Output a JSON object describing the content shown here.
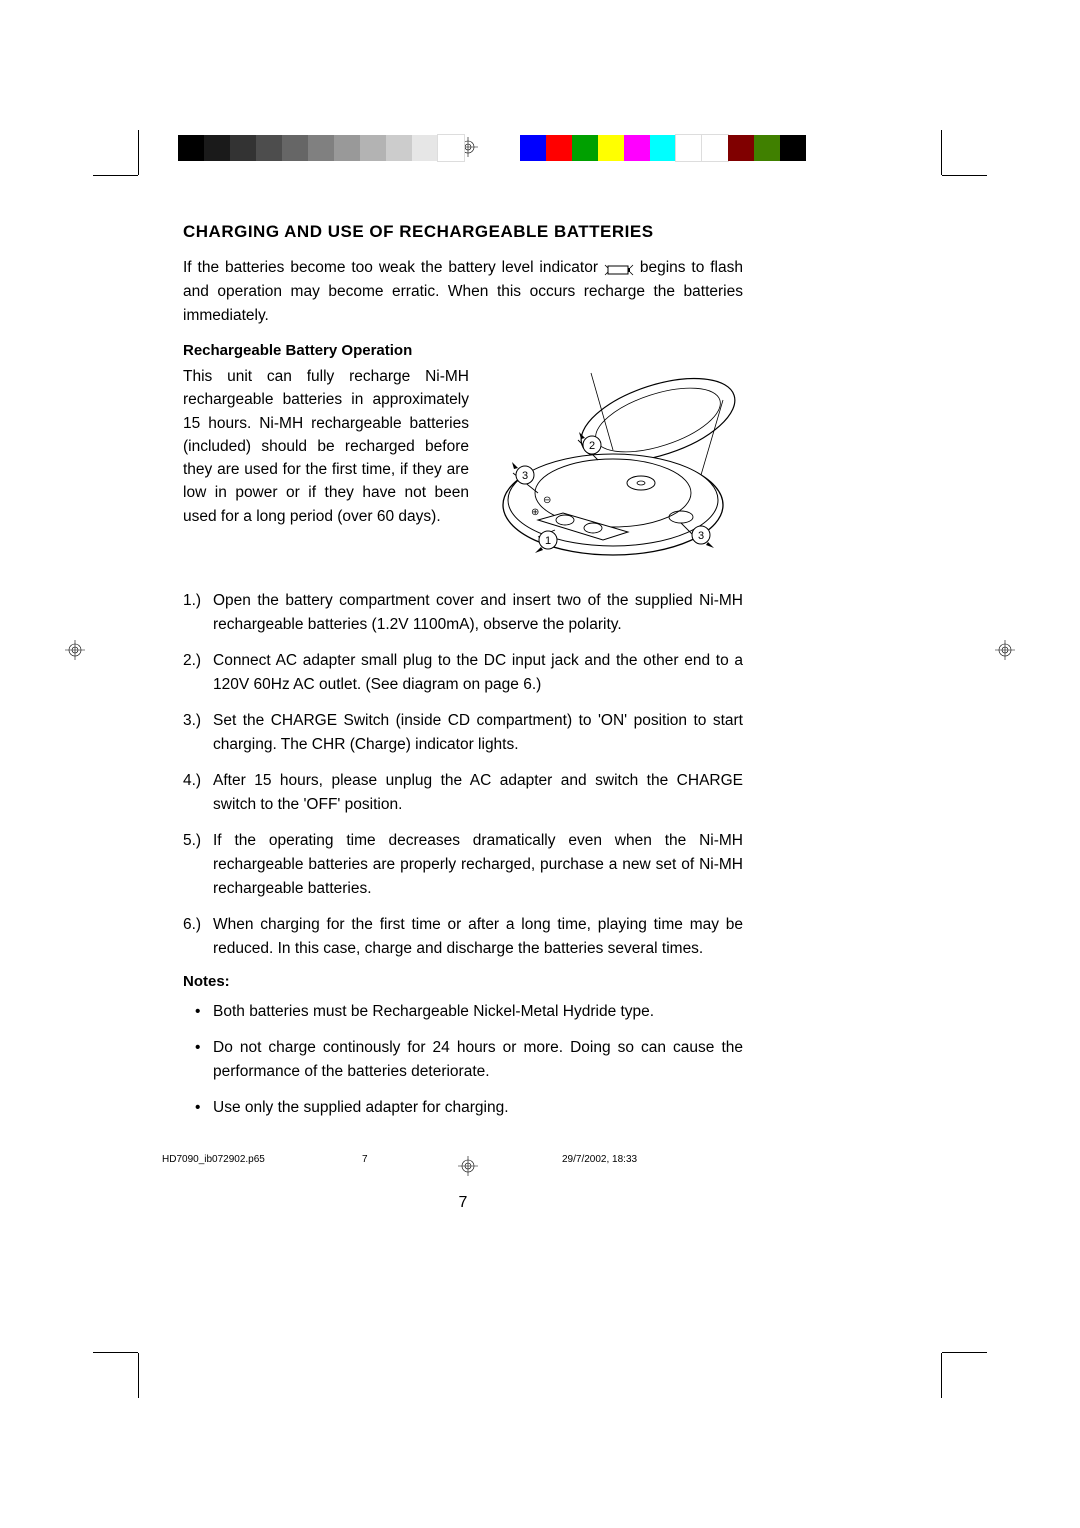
{
  "colorbars": {
    "left": [
      "#000000",
      "#1a1a1a",
      "#333333",
      "#4d4d4d",
      "#666666",
      "#808080",
      "#999999",
      "#b3b3b3",
      "#cccccc",
      "#e6e6e6",
      "#ffffff"
    ],
    "right": [
      "#0000ff",
      "#ff0000",
      "#00a000",
      "#ffff00",
      "#ff00ff",
      "#00ffff",
      "#ffffff",
      "#ffffff",
      "#800000",
      "#408000",
      "#000000"
    ]
  },
  "title": "CHARGING AND USE OF RECHARGEABLE BATTERIES",
  "intro": {
    "pre": "If the batteries become too weak the battery level indicator ",
    "post": " begins to flash and operation may become erratic. When this occurs recharge the batteries immediately."
  },
  "subhead": "Rechargeable Battery Operation",
  "col_text": "This unit can fully recharge Ni-MH rechargeable batteries in approximately 15 hours. Ni-MH rechargeable batteries (included) should be recharged before they are used for the first time, if they are low in power or if they have not been used for a long period (over 60 days).",
  "steps": [
    "Open the battery compartment cover and insert two of the supplied Ni-MH rechargeable batteries (1.2V 1100mA), observe the polarity.",
    "Connect AC adapter small plug to the DC input jack and the other end to a 120V 60Hz AC outlet. (See diagram on page 6.)",
    "Set the CHARGE Switch (inside CD compartment) to 'ON' position to start charging. The CHR (Charge) indicator lights.",
    "After 15 hours, please unplug the AC adapter and switch the CHARGE switch to the 'OFF' position.",
    "If the operating time decreases dramatically even when the Ni-MH rechargeable batteries are properly recharged, purchase a new set of Ni-MH rechargeable batteries.",
    "When charging for the first time or after a long time, playing time may be reduced. In this case, charge and discharge the batteries several times."
  ],
  "notes_head": "Notes:",
  "notes": [
    "Both batteries must be Rechargeable Nickel-Metal Hydride type.",
    "Do not charge continously for 24 hours or more. Doing so can cause the performance of the batteries deteriorate.",
    "Use only the supplied adapter for charging."
  ],
  "page_number": "7",
  "footer": {
    "file": "HD7090_ib072902.p65",
    "page": "7",
    "datetime": "29/7/2002, 18:33"
  },
  "callouts": {
    "c1": "1",
    "c2": "2",
    "c3": "3",
    "c3b": "3"
  }
}
